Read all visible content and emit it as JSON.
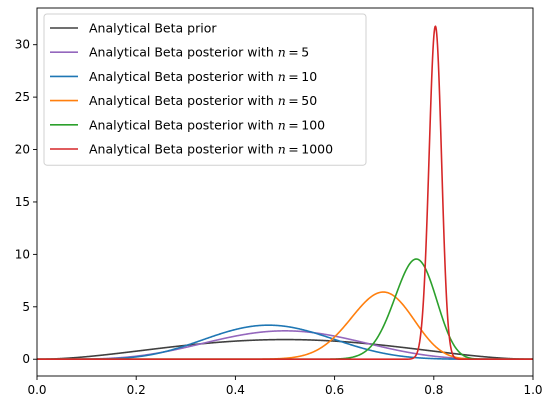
{
  "chart_data": {
    "type": "line",
    "title": "",
    "xlabel": "",
    "ylabel": "",
    "xlim": [
      0,
      1
    ],
    "ylim": [
      -1.6,
      33.5
    ],
    "xticks": [
      "0.0",
      "0.2",
      "0.4",
      "0.6",
      "0.8",
      "1.0"
    ],
    "yticks": [
      "0",
      "5",
      "10",
      "15",
      "20",
      "25",
      "30"
    ],
    "grid": false,
    "legend_position": "upper-left",
    "series": [
      {
        "name": "Analytical Beta prior",
        "prefix": "Analytical Beta prior",
        "n": "",
        "color": "#404040",
        "alpha": 3,
        "beta": 3
      },
      {
        "name": "Analytical Beta posterior with n = 5",
        "prefix": "Analytical Beta posterior with ",
        "n": "5",
        "color": "#9467bd",
        "alpha": 6,
        "beta": 6
      },
      {
        "name": "Analytical Beta posterior with n = 10",
        "prefix": "Analytical Beta posterior with ",
        "n": "10",
        "color": "#1f77b4",
        "alpha": 8,
        "beta": 9
      },
      {
        "name": "Analytical Beta posterior with n = 50",
        "prefix": "Analytical Beta posterior with ",
        "n": "50",
        "color": "#ff7f0e",
        "alpha": 38,
        "beta": 17
      },
      {
        "name": "Analytical Beta posterior with n = 100",
        "prefix": "Analytical Beta posterior with ",
        "n": "100",
        "color": "#2ca02c",
        "alpha": 79,
        "beta": 25
      },
      {
        "name": "Analytical Beta posterior with n = 1000",
        "prefix": "Analytical Beta posterior with ",
        "n": "1000",
        "color": "#d62728",
        "alpha": 805,
        "beta": 198
      }
    ]
  }
}
